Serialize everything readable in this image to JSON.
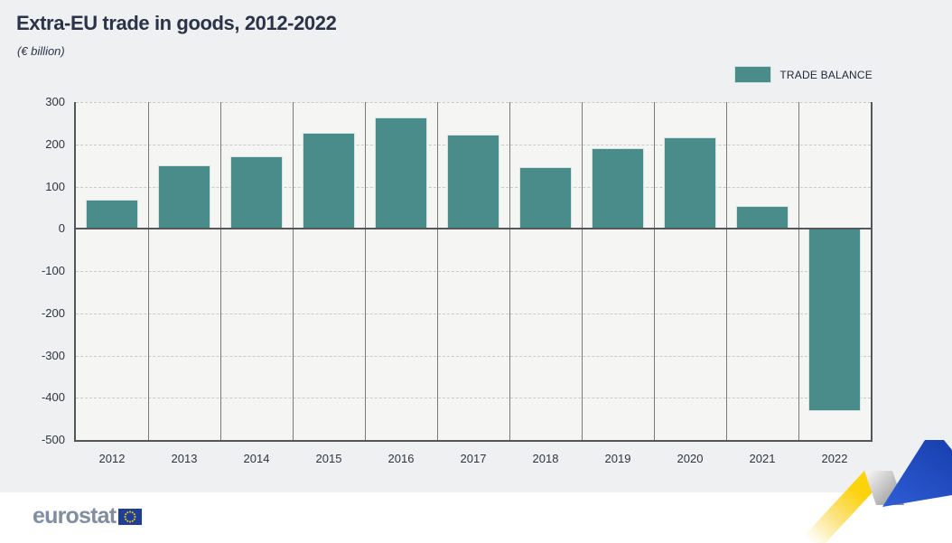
{
  "header": {
    "title": "Extra-EU trade in goods, 2012-2022",
    "subtitle": "(€ billion)"
  },
  "legend": {
    "label": "TRADE BALANCE",
    "color": "#4a8c89"
  },
  "chart_data": {
    "type": "bar",
    "title": "Extra-EU trade in goods, 2012-2022",
    "unit_label": "(€ billion)",
    "categories": [
      "2012",
      "2013",
      "2014",
      "2015",
      "2016",
      "2017",
      "2018",
      "2019",
      "2020",
      "2021",
      "2022"
    ],
    "series": [
      {
        "name": "TRADE BALANCE",
        "values": [
          68,
          150,
          172,
          228,
          264,
          222,
          147,
          191,
          216,
          55,
          -432
        ]
      }
    ],
    "yticks": [
      300,
      200,
      100,
      0,
      -100,
      -200,
      -300,
      -400,
      -500
    ],
    "ylim": [
      -500,
      300
    ],
    "bar_color": "#4a8c89",
    "grid": "horizontal dashed gridlines, solid vertical column separators",
    "legend_position": "top-right"
  },
  "footer": {
    "logo_text": "eurostat",
    "flag": "eu-flag-icon"
  },
  "decoration": {
    "ribbon_yellow": "#fcd20b",
    "ribbon_blue": "#1f4fc3",
    "ribbon_fold_gray": "#9a9a9a"
  }
}
